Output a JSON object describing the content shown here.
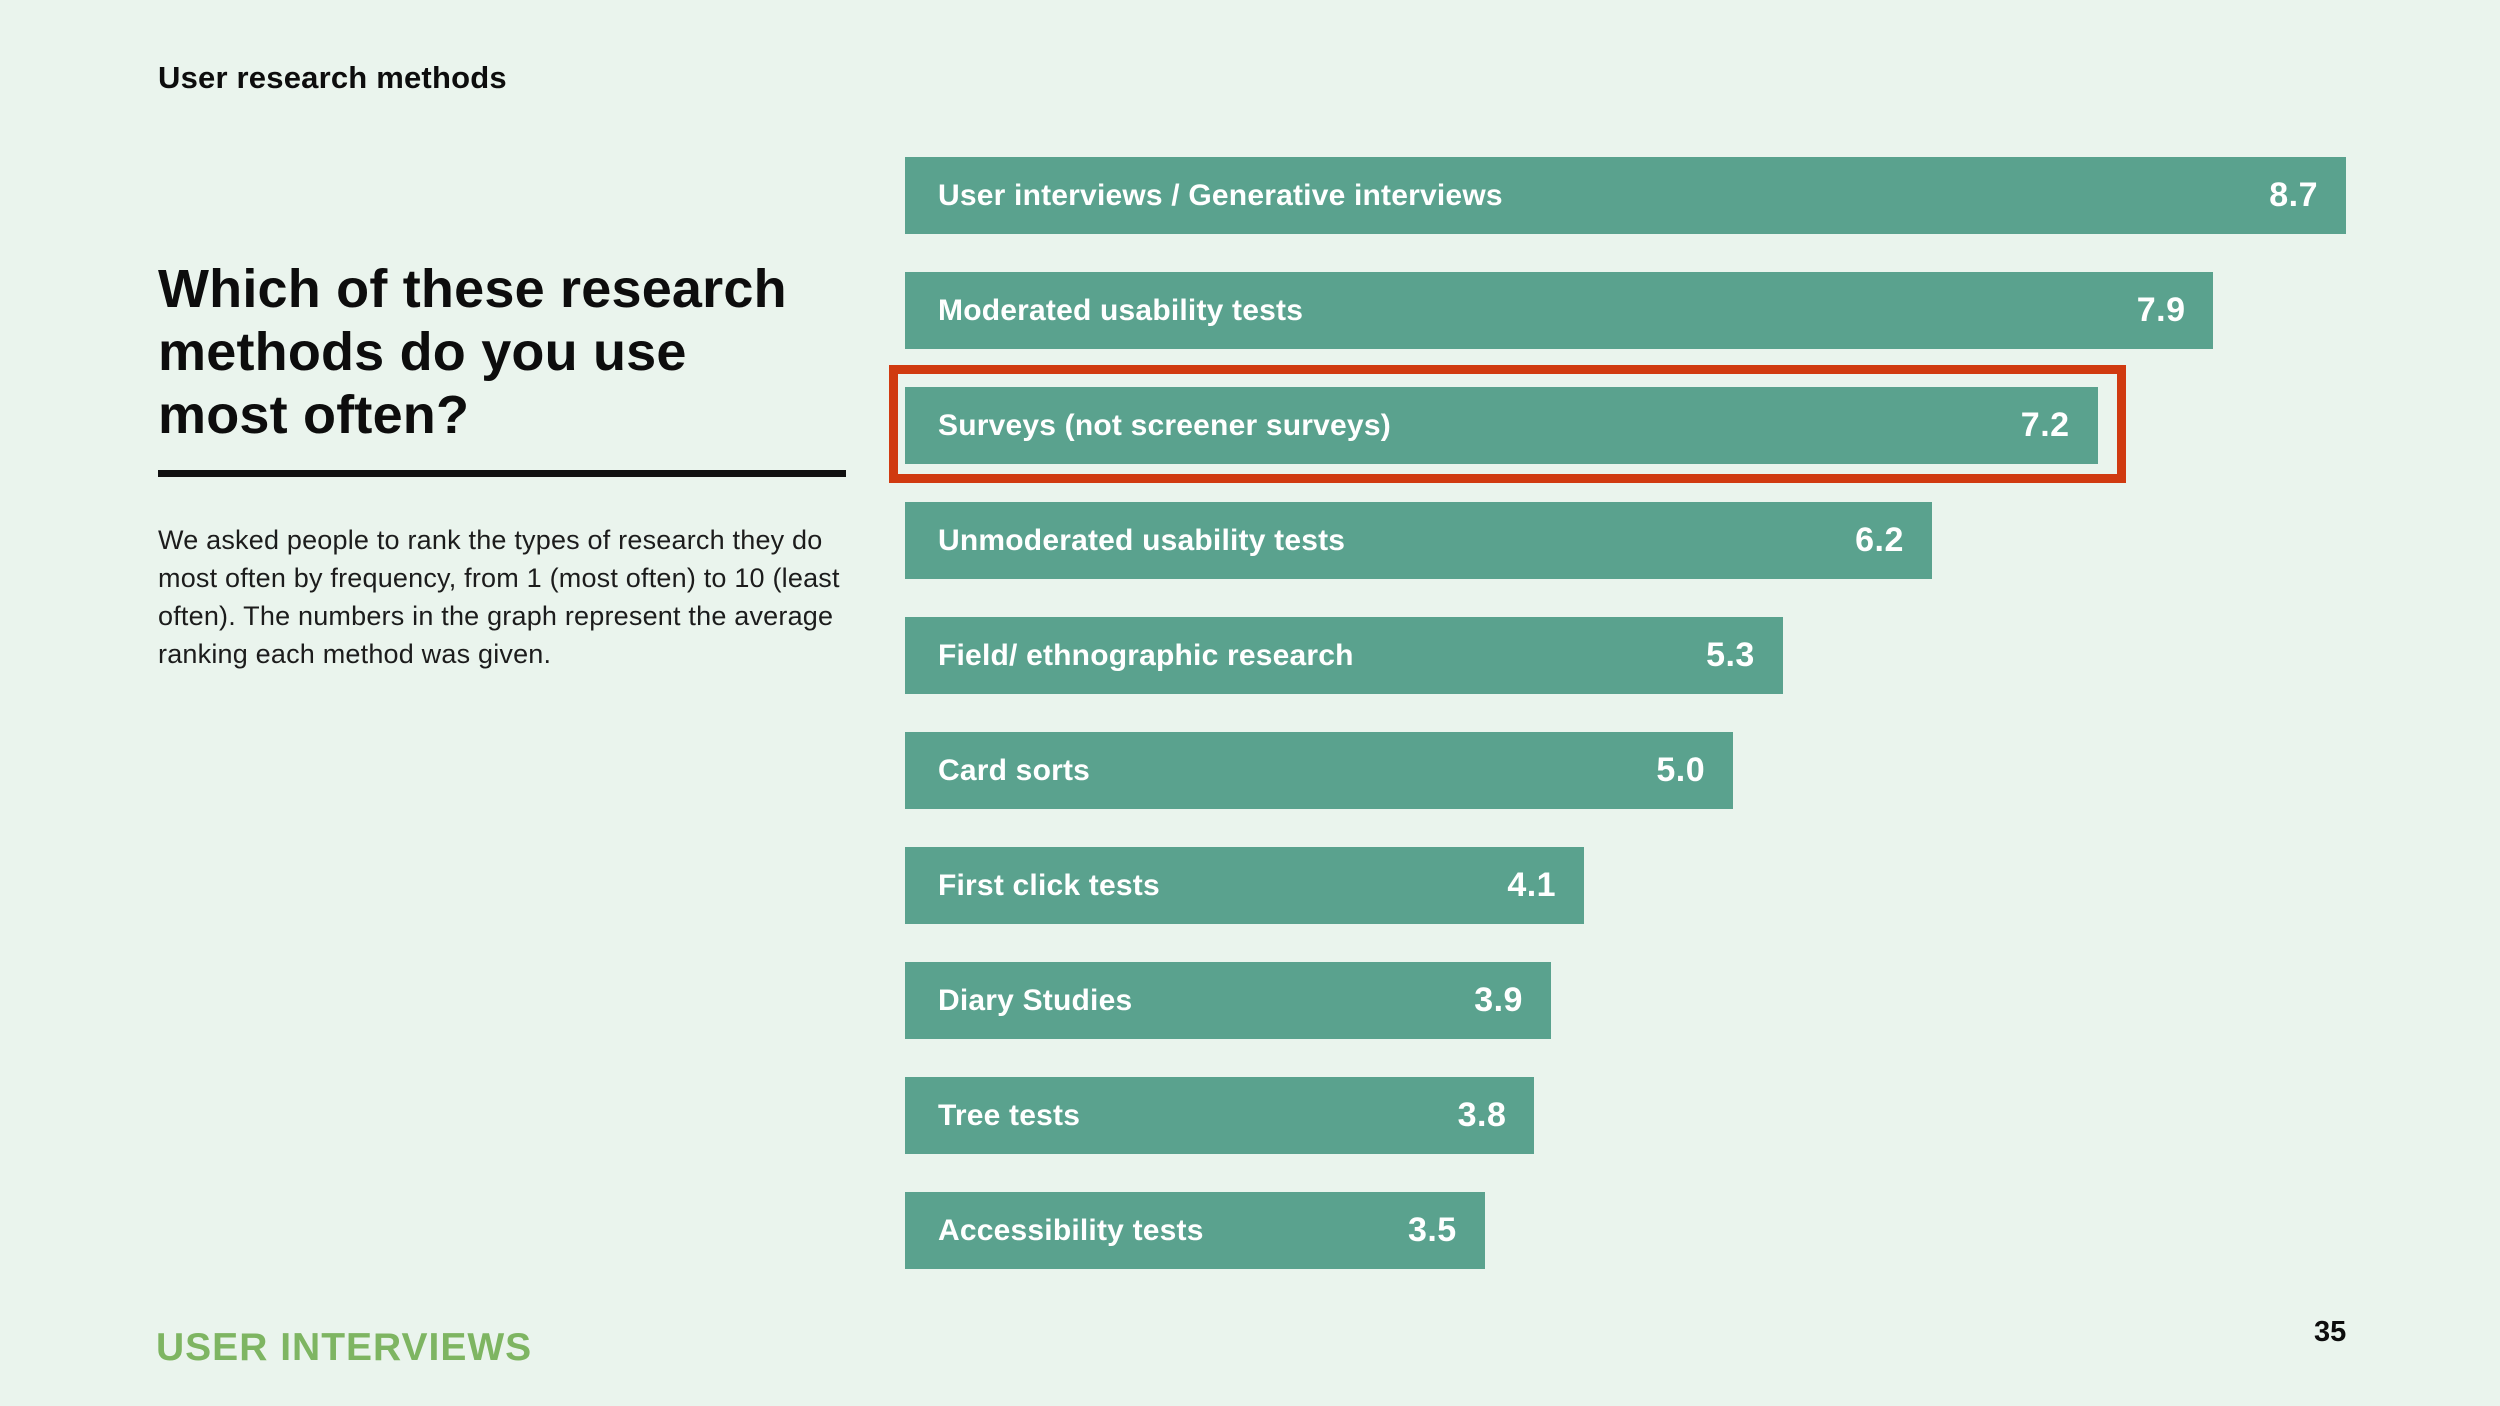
{
  "slide": {
    "eyebrow": "User research methods",
    "heading_lines": {
      "line1": "Which of these research",
      "line2": "methods do you use",
      "line3": "most often?"
    },
    "description": "We asked people to rank the types of research they do most often by frequency, from 1 (most often) to 10 (least often). The numbers in the graph represent the average ranking each method was given.",
    "footer_logo": "USER INTERVIEWS",
    "page_number": "35"
  },
  "colors": {
    "background": "#eaf4ed",
    "bar": "#5aa28e",
    "bar_text": "#ffffff",
    "highlight_red": "#d03a10",
    "logo_green": "#7eb562",
    "text": "#0d0d0d"
  },
  "chart_data": {
    "type": "bar",
    "orientation": "horizontal",
    "title": "Which of these research methods do you use most often?",
    "value_meaning": "Average ranking by frequency of use, from 1 (most often) to 10 (least often)",
    "axes_shown": false,
    "grid": false,
    "legend": "none",
    "labels_inside_bars": true,
    "max_scale_value": 8.7,
    "categories": [
      "User interviews / Generative interviews",
      "Moderated usability tests",
      "Surveys (not screener surveys)",
      "Unmoderated usability tests",
      "Field/ ethnographic research",
      "Card sorts",
      "First click tests",
      "Diary Studies",
      "Tree tests",
      "Accessibility tests"
    ],
    "values": [
      8.7,
      7.9,
      7.2,
      6.2,
      5.3,
      5.0,
      4.1,
      3.9,
      3.8,
      3.5
    ],
    "display_values": [
      "8.7",
      "7.9",
      "7.2",
      "6.2",
      "5.3",
      "5.0",
      "4.1",
      "3.9",
      "3.8",
      "3.5"
    ],
    "highlighted_index": 2,
    "highlighted_category": "Surveys (not screener surveys)"
  }
}
